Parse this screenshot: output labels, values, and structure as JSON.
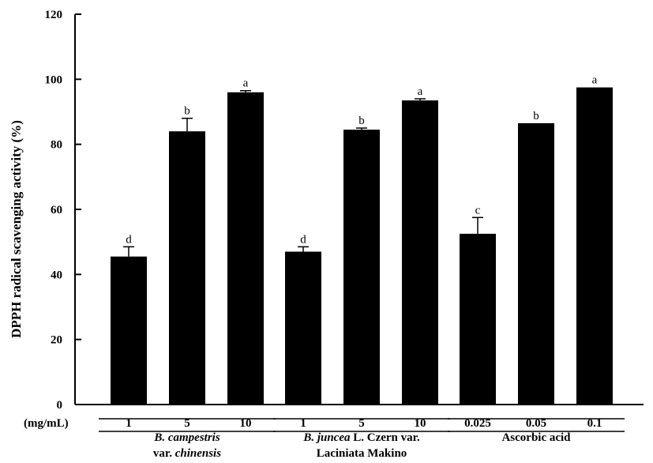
{
  "chart_data": {
    "type": "bar",
    "ylabel": "DPPH radical scavenging activity (%)",
    "ylim": [
      0,
      120
    ],
    "yticks": [
      0,
      20,
      40,
      60,
      80,
      100,
      120
    ],
    "unit_label": "(mg/mL)",
    "grid": false,
    "groups": [
      {
        "label_lines": [
          [
            {
              "text": "B. campestris",
              "italic": true
            }
          ],
          [
            {
              "text": "var. ",
              "italic": false
            },
            {
              "text": "chinensis",
              "italic": true
            }
          ]
        ],
        "bars": [
          {
            "category": "1",
            "value": 45.5,
            "error": 3.0,
            "letter": "d"
          },
          {
            "category": "5",
            "value": 84.0,
            "error": 4.0,
            "letter": "b"
          },
          {
            "category": "10",
            "value": 96.0,
            "error": 0.5,
            "letter": "a"
          }
        ]
      },
      {
        "label_lines": [
          [
            {
              "text": "B. juncea",
              "italic": true
            },
            {
              "text": " L. Czern var.",
              "italic": false
            }
          ],
          [
            {
              "text": "Laciniata Makino",
              "italic": false
            }
          ]
        ],
        "bars": [
          {
            "category": "1",
            "value": 47.0,
            "error": 1.5,
            "letter": "d"
          },
          {
            "category": "5",
            "value": 84.5,
            "error": 0.5,
            "letter": "b"
          },
          {
            "category": "10",
            "value": 93.5,
            "error": 0.5,
            "letter": "a"
          }
        ]
      },
      {
        "label_lines": [
          [
            {
              "text": "Ascorbic acid",
              "italic": false
            }
          ]
        ],
        "bars": [
          {
            "category": "0.025",
            "value": 52.5,
            "error": 5.0,
            "letter": "c"
          },
          {
            "category": "0.05",
            "value": 86.5,
            "error": 0.0,
            "letter": "b"
          },
          {
            "category": "0.1",
            "value": 97.5,
            "error": 0.0,
            "letter": "a"
          }
        ]
      }
    ]
  }
}
